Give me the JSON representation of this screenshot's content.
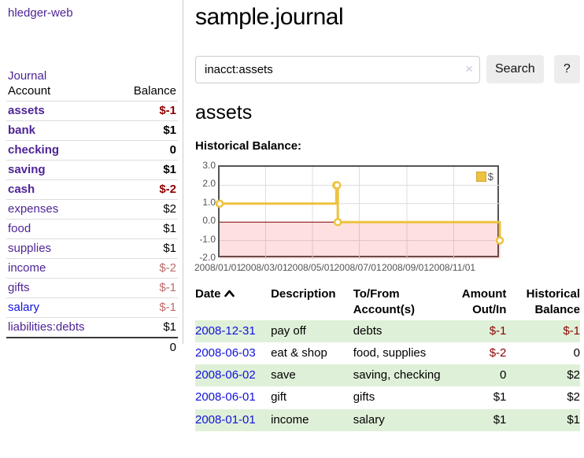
{
  "app": {
    "title": "hledger-web"
  },
  "colors": {
    "link_purple": "#4e2496",
    "link_blue": "#1212dd",
    "negative_strong": "#8b0000",
    "negative_soft": "#bd6a6a",
    "row_stripe_green": "#dff0d8",
    "series_yellow": "#EDC240",
    "zero_line_red": "#800000",
    "negative_region_pink": "rgba(255,0,0,0.12)"
  },
  "sidebar": {
    "nav_journal": "Journal",
    "accounts_table": {
      "headers": [
        "Account",
        "Balance"
      ],
      "rows": [
        {
          "account": "assets",
          "indent": 1,
          "bold": true,
          "balance": "$-1",
          "neg": "strong"
        },
        {
          "account": "bank",
          "indent": 2,
          "bold": true,
          "balance": "$1"
        },
        {
          "account": "checking",
          "indent": 3,
          "bold": true,
          "balance": "0"
        },
        {
          "account": "saving",
          "indent": 3,
          "bold": true,
          "balance": "$1"
        },
        {
          "account": "cash",
          "indent": 2,
          "bold": true,
          "balance": "$-2",
          "neg": "strong"
        },
        {
          "account": "expenses",
          "indent": 1,
          "bold": false,
          "balance": "$2"
        },
        {
          "account": "food",
          "indent": 2,
          "bold": false,
          "balance": "$1"
        },
        {
          "account": "supplies",
          "indent": 2,
          "bold": false,
          "balance": "$1"
        },
        {
          "account": "income",
          "indent": 1,
          "bold": false,
          "balance": "$-2",
          "neg": "soft"
        },
        {
          "account": "gifts",
          "indent": 2,
          "bold": false,
          "balance": "$-1",
          "neg": "soft"
        },
        {
          "account": "salary",
          "indent": 2,
          "bold": false,
          "balance": "$-1",
          "neg": "soft",
          "link": "blue"
        },
        {
          "account": "liabilities:debts",
          "indent": 1,
          "bold": false,
          "balance": "$1"
        }
      ],
      "total": "0"
    }
  },
  "main": {
    "title": "sample.journal",
    "search": {
      "value": "inacct:assets",
      "clear": "×",
      "button": "Search",
      "help": "?"
    },
    "account_heading": "assets",
    "chart_label": "Historical Balance:"
  },
  "chart_data": {
    "type": "line",
    "title": "Historical Balance",
    "step": true,
    "xrange": [
      "2008-01-01",
      "2009-01-01"
    ],
    "ylim": [
      -2.0,
      3.0
    ],
    "yticks": [
      3.0,
      2.0,
      1.0,
      0.0,
      -1.0,
      -2.0
    ],
    "xticks": [
      "2008/01/01",
      "2008/03/01",
      "2008/05/01",
      "2008/07/01",
      "2008/09/01",
      "2008/11/01"
    ],
    "xtick_dates": [
      "2008-01-01",
      "2008-03-01",
      "2008-05-01",
      "2008-07-01",
      "2008-09-01",
      "2008-11-01"
    ],
    "legend_position": "top-right",
    "grid": true,
    "series": [
      {
        "name": "$",
        "color": "#EDC240",
        "points": [
          [
            "2008-01-01",
            1
          ],
          [
            "2008-06-01",
            2
          ],
          [
            "2008-06-02",
            2
          ],
          [
            "2008-06-03",
            0
          ],
          [
            "2008-12-31",
            -1
          ]
        ]
      }
    ]
  },
  "register": {
    "headers": [
      "Date",
      "Description",
      "To/From Account(s)",
      "Amount Out/In",
      "Historical Balance"
    ],
    "rows": [
      {
        "date": "2008-12-31",
        "description": "pay off",
        "accounts": "debts",
        "amount": "$-1",
        "amount_neg": true,
        "balance": "$-1",
        "balance_neg": true
      },
      {
        "date": "2008-06-03",
        "description": "eat & shop",
        "accounts": "food, supplies",
        "amount": "$-2",
        "amount_neg": true,
        "balance": "0",
        "balance_neg": false
      },
      {
        "date": "2008-06-02",
        "description": "save",
        "accounts": "saving, checking",
        "amount": "0",
        "amount_neg": false,
        "balance": "$2",
        "balance_neg": false
      },
      {
        "date": "2008-06-01",
        "description": "gift",
        "accounts": "gifts",
        "amount": "$1",
        "amount_neg": false,
        "balance": "$2",
        "balance_neg": false
      },
      {
        "date": "2008-01-01",
        "description": "income",
        "accounts": "salary",
        "amount": "$1",
        "amount_neg": false,
        "balance": "$1",
        "balance_neg": false
      }
    ]
  }
}
